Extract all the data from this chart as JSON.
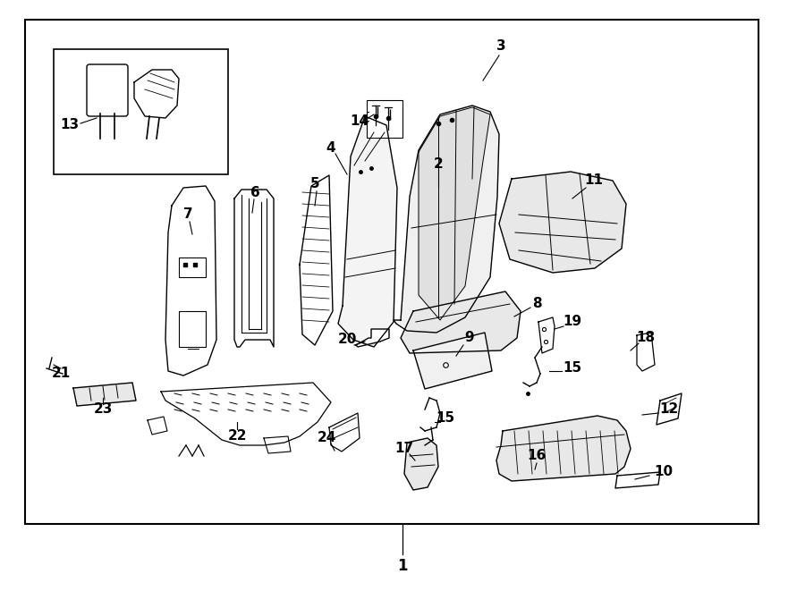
{
  "bg_color": "#ffffff",
  "border_color": "#000000",
  "fig_width": 9.0,
  "fig_height": 6.61,
  "dpi": 100
}
